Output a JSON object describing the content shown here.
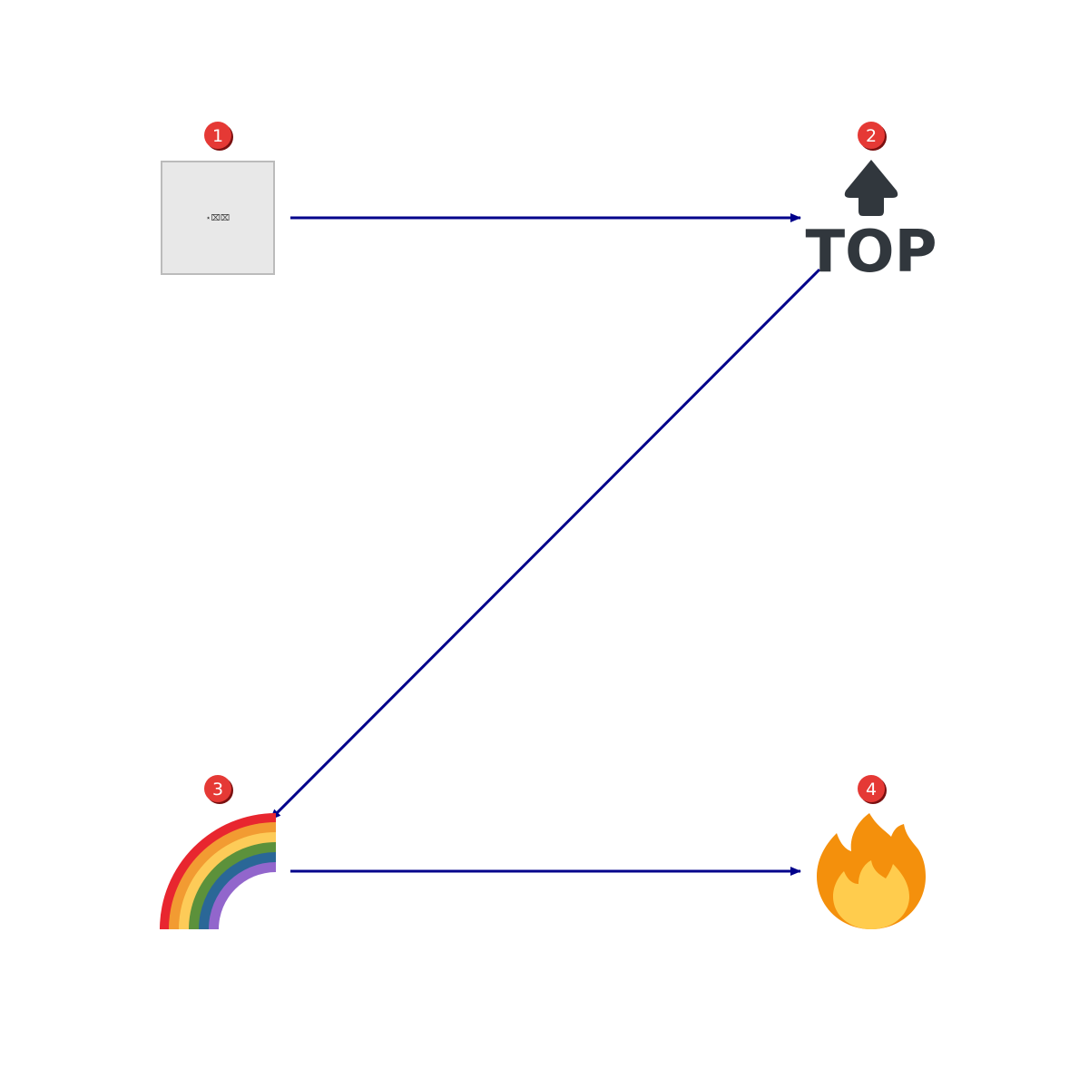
{
  "steps": [
    {
      "number": "1",
      "icon": "missing-image-placeholder",
      "label": "⋆⌧⌧"
    },
    {
      "number": "2",
      "icon": "top-arrow-icon",
      "label": "TOP"
    },
    {
      "number": "3",
      "icon": "rainbow-icon"
    },
    {
      "number": "4",
      "icon": "fire-icon"
    }
  ],
  "colors": {
    "arrow": "#00008b",
    "badge": "#e53935",
    "badge_shadow": "#7a1010",
    "top_icon": "#31373d",
    "placeholder_fill": "#e8e8e8",
    "placeholder_border": "#bbbbbb"
  },
  "flow": [
    "1->2",
    "2->3",
    "3->4"
  ]
}
